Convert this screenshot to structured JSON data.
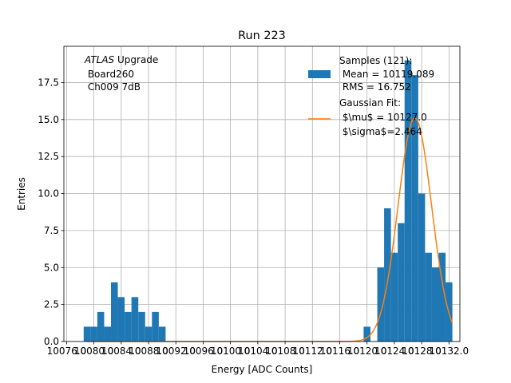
{
  "chart_data": {
    "type": "histogram",
    "title": "Run 223",
    "xlabel": "Energy [ADC Counts]",
    "ylabel": "Entries",
    "xlim": [
      10075.6,
      10133.6
    ],
    "ylim": [
      0,
      19.95
    ],
    "grid": true,
    "x_ticks": [
      10076.0,
      10080.0,
      10084.0,
      10088.0,
      10092.0,
      10096.0,
      10100.0,
      10104.0,
      10108.0,
      10112.0,
      10116.0,
      10120.0,
      10124.0,
      10128.0,
      10132.0
    ],
    "x_tick_labels": [
      "10076.0",
      "10080.0",
      "10084.0",
      "10088.0",
      "10092.0",
      "10096.0",
      "10100.0",
      "10104.0",
      "10108.0",
      "10112.0",
      "10116.0",
      "10120.0",
      "10124.0",
      "10128.0",
      "10132.0"
    ],
    "y_ticks": [
      0.0,
      2.5,
      5.0,
      7.5,
      10.0,
      12.5,
      15.0,
      17.5
    ],
    "y_tick_labels": [
      "0.0",
      "2.5",
      "5.0",
      "7.5",
      "10.0",
      "12.5",
      "15.0",
      "17.5"
    ],
    "annotation": {
      "experiment": "ATLAS",
      "experiment_suffix": " Upgrade",
      "board": " Board260",
      "channel": " Ch009 7dB"
    },
    "legend": {
      "placement": "upper right",
      "entries": [
        {
          "name": "samples",
          "lines": [
            "Samples (121):",
            " Mean = 10119.089",
            " RMS = 16.752"
          ]
        },
        {
          "name": "fit",
          "lines": [
            "Gaussian Fit:",
            " $\\mu$ = 10127.0",
            " $\\sigma$=2.464"
          ]
        }
      ]
    },
    "series": [
      {
        "name": "Samples (121):",
        "kind": "histogram",
        "color": "#1f77b4",
        "bin_width": 1.0,
        "bins": [
          {
            "x": 10079.0,
            "count": 1
          },
          {
            "x": 10080.0,
            "count": 1
          },
          {
            "x": 10081.0,
            "count": 2
          },
          {
            "x": 10082.0,
            "count": 1
          },
          {
            "x": 10083.0,
            "count": 4
          },
          {
            "x": 10084.0,
            "count": 3
          },
          {
            "x": 10085.0,
            "count": 2
          },
          {
            "x": 10086.0,
            "count": 3
          },
          {
            "x": 10087.0,
            "count": 2
          },
          {
            "x": 10088.0,
            "count": 1
          },
          {
            "x": 10089.0,
            "count": 2
          },
          {
            "x": 10090.0,
            "count": 1
          },
          {
            "x": 10120.0,
            "count": 1
          },
          {
            "x": 10122.0,
            "count": 5
          },
          {
            "x": 10123.0,
            "count": 9
          },
          {
            "x": 10124.0,
            "count": 6
          },
          {
            "x": 10125.0,
            "count": 8
          },
          {
            "x": 10126.0,
            "count": 19
          },
          {
            "x": 10127.0,
            "count": 18
          },
          {
            "x": 10128.0,
            "count": 10
          },
          {
            "x": 10129.0,
            "count": 6
          },
          {
            "x": 10130.0,
            "count": 5
          },
          {
            "x": 10131.0,
            "count": 6
          },
          {
            "x": 10132.0,
            "count": 4
          }
        ]
      },
      {
        "name": "Gaussian Fit:",
        "kind": "line",
        "color": "#ff7f0e",
        "model": "gaussian",
        "mu": 10127.0,
        "sigma": 2.464,
        "amplitude": 15.1,
        "x_range": [
          10079.0,
          10132.5
        ]
      }
    ]
  }
}
